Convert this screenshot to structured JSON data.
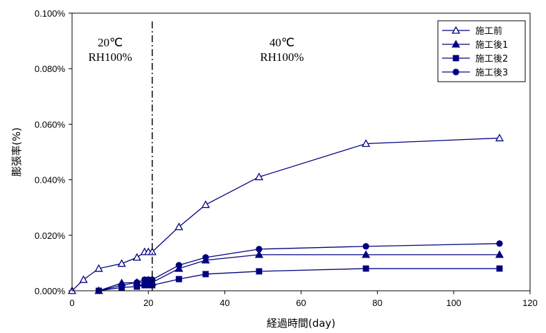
{
  "chart_data": {
    "type": "line",
    "title": "",
    "xlabel": "経過時間(day)",
    "ylabel": "膨張率(%)",
    "xlim": [
      0,
      120
    ],
    "ylim": [
      0,
      0.1
    ],
    "xticks": [
      0,
      20,
      40,
      60,
      80,
      100,
      120
    ],
    "xtick_labels": [
      "0",
      "20",
      "40",
      "60",
      "80",
      "100",
      "120"
    ],
    "yticks": [
      0,
      0.02,
      0.04,
      0.06,
      0.08,
      0.1
    ],
    "ytick_labels": [
      "0.000%",
      "0.020%",
      "0.040%",
      "0.060%",
      "0.080%",
      "0.100%"
    ],
    "grid": false,
    "legend_position": "top-right",
    "line_color": "#000080",
    "divider": {
      "x": 21,
      "style": "dash-dot",
      "color": "#000000"
    },
    "annotations": [
      {
        "lines": [
          "20℃",
          "RH100%"
        ],
        "x": 10,
        "y": 0.088
      },
      {
        "lines": [
          "40℃",
          "RH100%"
        ],
        "x": 55,
        "y": 0.088
      }
    ],
    "series": [
      {
        "name": "施工前",
        "marker": "triangle-open",
        "x": [
          0,
          3,
          7,
          13,
          17,
          19,
          20,
          21
        ],
        "y": [
          0,
          0.004,
          0.008,
          0.0098,
          0.012,
          0.014,
          0.014,
          0.014
        ],
        "x_cont": [
          21,
          28,
          35,
          49,
          77,
          112
        ],
        "y_cont": [
          0.014,
          0.023,
          0.031,
          0.041,
          0.053,
          0.055
        ]
      },
      {
        "name": "施工後1",
        "marker": "triangle-filled",
        "x": [
          7,
          13,
          17,
          19,
          20,
          21,
          28,
          35,
          49,
          77,
          112
        ],
        "y": [
          0,
          0.0028,
          0.003,
          0.003,
          0.003,
          0.003,
          0.008,
          0.011,
          0.013,
          0.013,
          0.013
        ]
      },
      {
        "name": "施工後2",
        "marker": "square-filled",
        "x": [
          7,
          13,
          17,
          19,
          20,
          21,
          28,
          35,
          49,
          77,
          112
        ],
        "y": [
          0,
          0.0012,
          0.0015,
          0.002,
          0.002,
          0.002,
          0.0042,
          0.006,
          0.007,
          0.008,
          0.008
        ]
      },
      {
        "name": "施工後3",
        "marker": "circle-filled",
        "x": [
          7,
          13,
          17,
          19,
          20,
          21,
          28,
          35,
          49,
          77,
          112
        ],
        "y": [
          0,
          0.002,
          0.003,
          0.004,
          0.004,
          0.004,
          0.0092,
          0.012,
          0.015,
          0.016,
          0.017
        ]
      }
    ]
  }
}
